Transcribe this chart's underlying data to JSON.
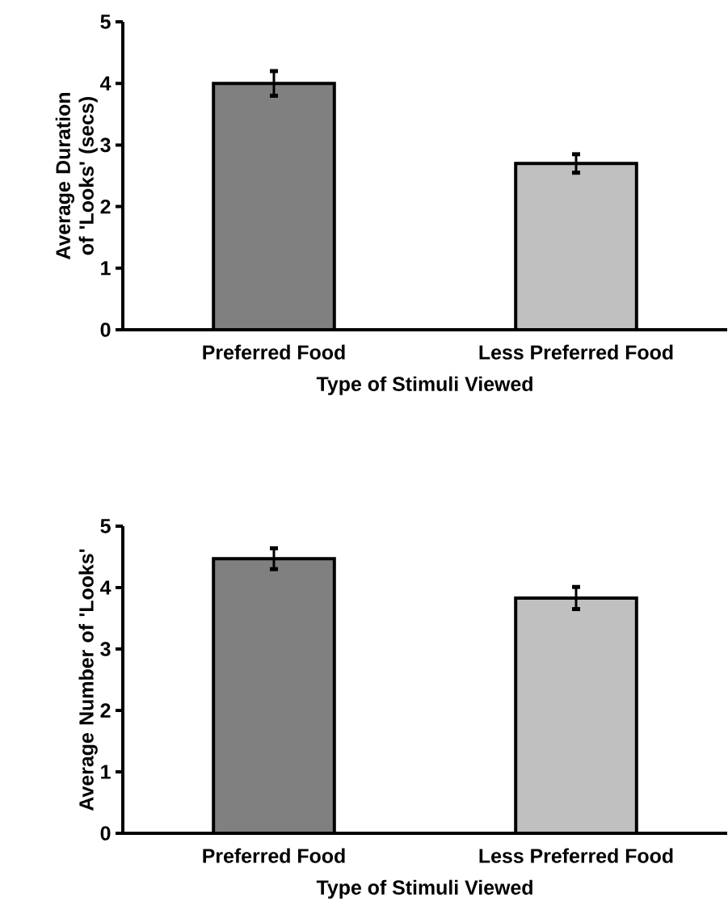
{
  "chart_data": [
    {
      "type": "bar",
      "categories": [
        "Preferred Food",
        "Less Preferred Food"
      ],
      "values": [
        4.0,
        2.7
      ],
      "errors": [
        0.2,
        0.15
      ],
      "colors": [
        "#808080",
        "#c0c0c0"
      ],
      "ylim": [
        0,
        5
      ],
      "yticks": [
        0,
        1,
        2,
        3,
        4,
        5
      ],
      "xlabel": "Type of Stimuli Viewed",
      "ylabel": "Average Duration of 'Looks' (secs)"
    },
    {
      "type": "bar",
      "categories": [
        "Preferred Food",
        "Less Preferred Food"
      ],
      "values": [
        4.47,
        3.83
      ],
      "errors": [
        0.17,
        0.18
      ],
      "colors": [
        "#808080",
        "#c0c0c0"
      ],
      "ylim": [
        0,
        5
      ],
      "yticks": [
        0,
        1,
        2,
        3,
        4,
        5
      ],
      "xlabel": "Type of Stimuli Viewed",
      "ylabel": "Average Number of 'Looks'"
    }
  ]
}
